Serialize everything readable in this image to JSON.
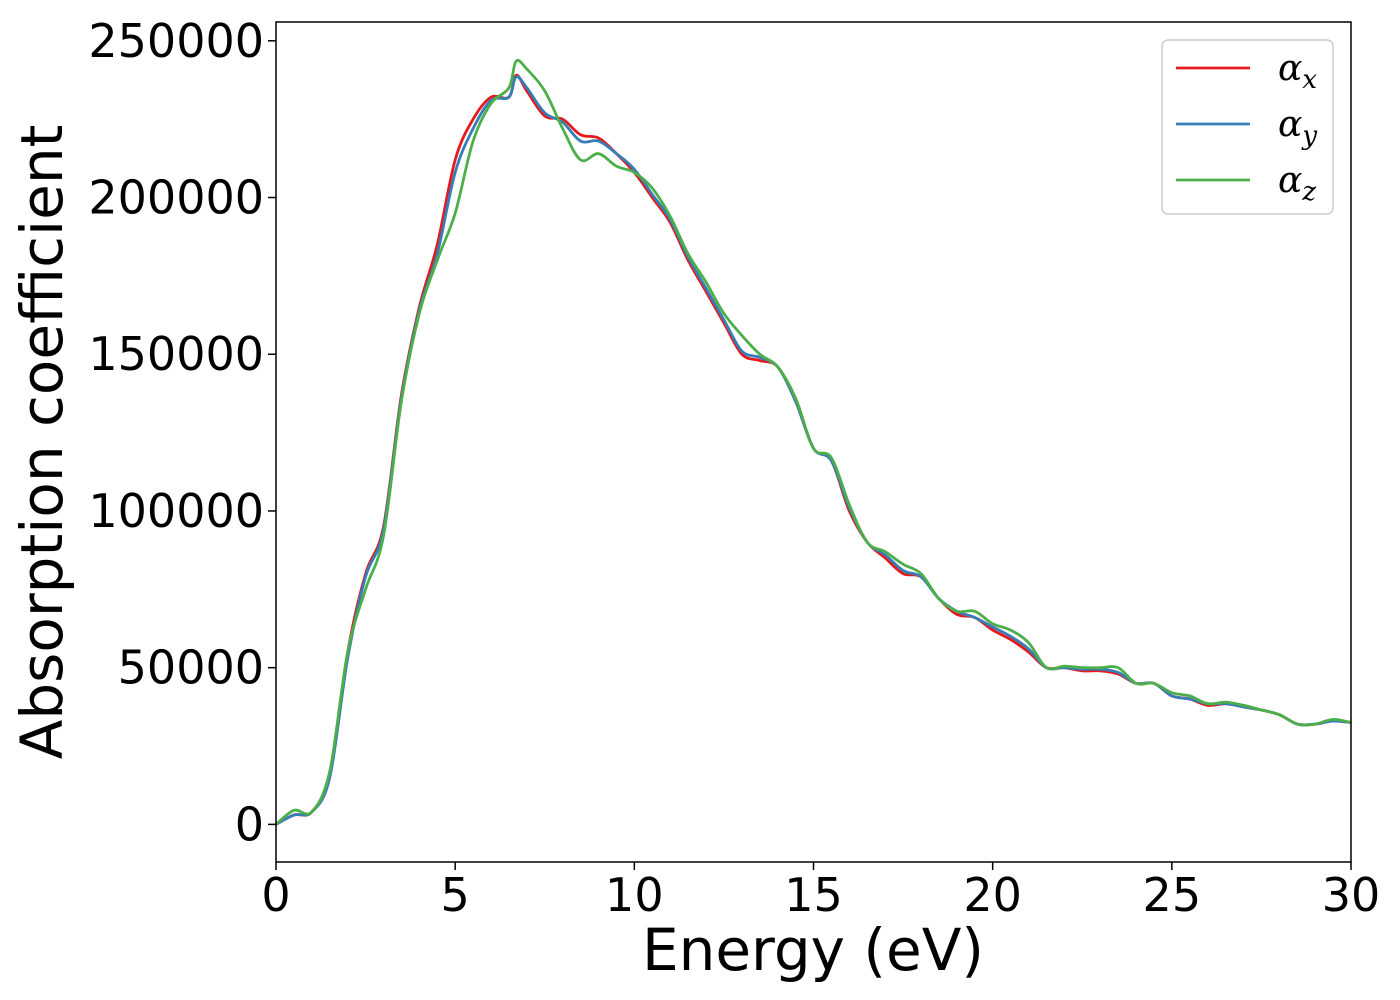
{
  "chart_data": {
    "type": "line",
    "title": "",
    "xlabel": "Energy (eV)",
    "ylabel": "Absorption coefficient",
    "xlim": [
      0,
      30
    ],
    "ylim": [
      -12000,
      256000
    ],
    "xticks": [
      0,
      5,
      10,
      15,
      20,
      25,
      30
    ],
    "yticks": [
      0,
      50000,
      100000,
      150000,
      200000,
      250000
    ],
    "grid": false,
    "legend_position": "top-right",
    "series": [
      {
        "name": "αx",
        "symbol": "α",
        "subscript": "x",
        "color": "#e41a1c",
        "x": [
          0,
          0.5,
          1.0,
          1.5,
          2.0,
          2.5,
          3.0,
          3.5,
          4.0,
          4.5,
          5.0,
          5.5,
          6.0,
          6.5,
          6.7,
          7.0,
          7.5,
          8.0,
          8.5,
          9.0,
          9.5,
          10.0,
          10.5,
          11.0,
          11.5,
          12.0,
          12.5,
          13.0,
          13.5,
          14.0,
          14.5,
          15.0,
          15.5,
          16.0,
          16.5,
          17.0,
          17.5,
          18.0,
          18.5,
          19.0,
          19.5,
          20.0,
          20.5,
          21.0,
          21.5,
          22.0,
          22.5,
          23.0,
          23.5,
          24.0,
          24.5,
          25.0,
          25.5,
          26.0,
          26.5,
          27.0,
          27.5,
          28.0,
          28.5,
          29.0,
          29.5,
          30.0
        ],
        "y": [
          0,
          3000,
          4000,
          16000,
          55000,
          80000,
          95000,
          137000,
          165000,
          185000,
          212000,
          225000,
          232000,
          232000,
          239000,
          234000,
          226000,
          225000,
          220000,
          219000,
          214000,
          208000,
          200000,
          192000,
          180000,
          170000,
          160000,
          150000,
          148000,
          146000,
          135000,
          120000,
          116000,
          100000,
          90000,
          85000,
          80000,
          79000,
          72000,
          67000,
          66000,
          62000,
          59000,
          55000,
          50000,
          50000,
          49000,
          49000,
          48000,
          45000,
          45000,
          41000,
          40000,
          38000,
          38500,
          37500,
          36500,
          35000,
          32000,
          32000,
          33000,
          32500
        ]
      },
      {
        "name": "αy",
        "symbol": "α",
        "subscript": "y",
        "color": "#377eb8",
        "x": [
          0,
          0.5,
          1.0,
          1.5,
          2.0,
          2.5,
          3.0,
          3.5,
          4.0,
          4.5,
          5.0,
          5.5,
          6.0,
          6.5,
          6.7,
          7.0,
          7.5,
          8.0,
          8.5,
          9.0,
          9.5,
          10.0,
          10.5,
          11.0,
          11.5,
          12.0,
          12.5,
          13.0,
          13.5,
          14.0,
          14.5,
          15.0,
          15.5,
          16.0,
          16.5,
          17.0,
          17.5,
          18.0,
          18.5,
          19.0,
          19.5,
          20.0,
          20.5,
          21.0,
          21.5,
          22.0,
          22.5,
          23.0,
          23.5,
          24.0,
          24.5,
          25.0,
          25.5,
          26.0,
          26.5,
          27.0,
          27.5,
          28.0,
          28.5,
          29.0,
          29.5,
          30.0
        ],
        "y": [
          0,
          3000,
          4000,
          15000,
          53000,
          79000,
          94000,
          136000,
          164000,
          182000,
          208000,
          222000,
          231000,
          232000,
          238500,
          235000,
          227000,
          224000,
          218000,
          218000,
          214000,
          209000,
          201000,
          193000,
          181000,
          171000,
          161000,
          151000,
          149000,
          146000,
          135000,
          120000,
          116000,
          101000,
          90000,
          86000,
          81000,
          79000,
          72000,
          68000,
          66000,
          63000,
          60000,
          56000,
          50000,
          50000,
          49500,
          49500,
          48500,
          45000,
          45000,
          41000,
          40000,
          38500,
          38500,
          37500,
          36500,
          35000,
          32000,
          32000,
          33000,
          32500
        ]
      },
      {
        "name": "αz",
        "symbol": "α",
        "subscript": "z",
        "color": "#4daf4a",
        "x": [
          0,
          0.5,
          1.0,
          1.5,
          2.0,
          2.5,
          3.0,
          3.5,
          4.0,
          4.5,
          5.0,
          5.5,
          6.0,
          6.5,
          6.7,
          7.0,
          7.5,
          8.0,
          8.5,
          9.0,
          9.5,
          10.0,
          10.5,
          11.0,
          11.5,
          12.0,
          12.5,
          13.0,
          13.5,
          14.0,
          14.5,
          15.0,
          15.5,
          16.0,
          16.5,
          17.0,
          17.5,
          18.0,
          18.5,
          19.0,
          19.5,
          20.0,
          20.5,
          21.0,
          21.5,
          22.0,
          22.5,
          23.0,
          23.5,
          24.0,
          24.5,
          25.0,
          25.5,
          26.0,
          26.5,
          27.0,
          27.5,
          28.0,
          28.5,
          29.0,
          29.5,
          30.0
        ],
        "y": [
          0,
          4500,
          4000,
          17000,
          55000,
          75000,
          92000,
          135000,
          163000,
          180000,
          195000,
          218000,
          230000,
          235000,
          243500,
          241000,
          234000,
          222000,
          212000,
          214000,
          210000,
          208000,
          203000,
          194000,
          182000,
          173000,
          163000,
          156000,
          150000,
          146000,
          136000,
          120000,
          117000,
          102000,
          90000,
          87000,
          83000,
          80000,
          72000,
          68000,
          68000,
          64000,
          62000,
          58000,
          50000,
          50500,
          50000,
          50000,
          50000,
          45000,
          45000,
          42000,
          41000,
          38500,
          39000,
          38000,
          36500,
          35000,
          32000,
          32000,
          33500,
          32500
        ]
      }
    ]
  }
}
